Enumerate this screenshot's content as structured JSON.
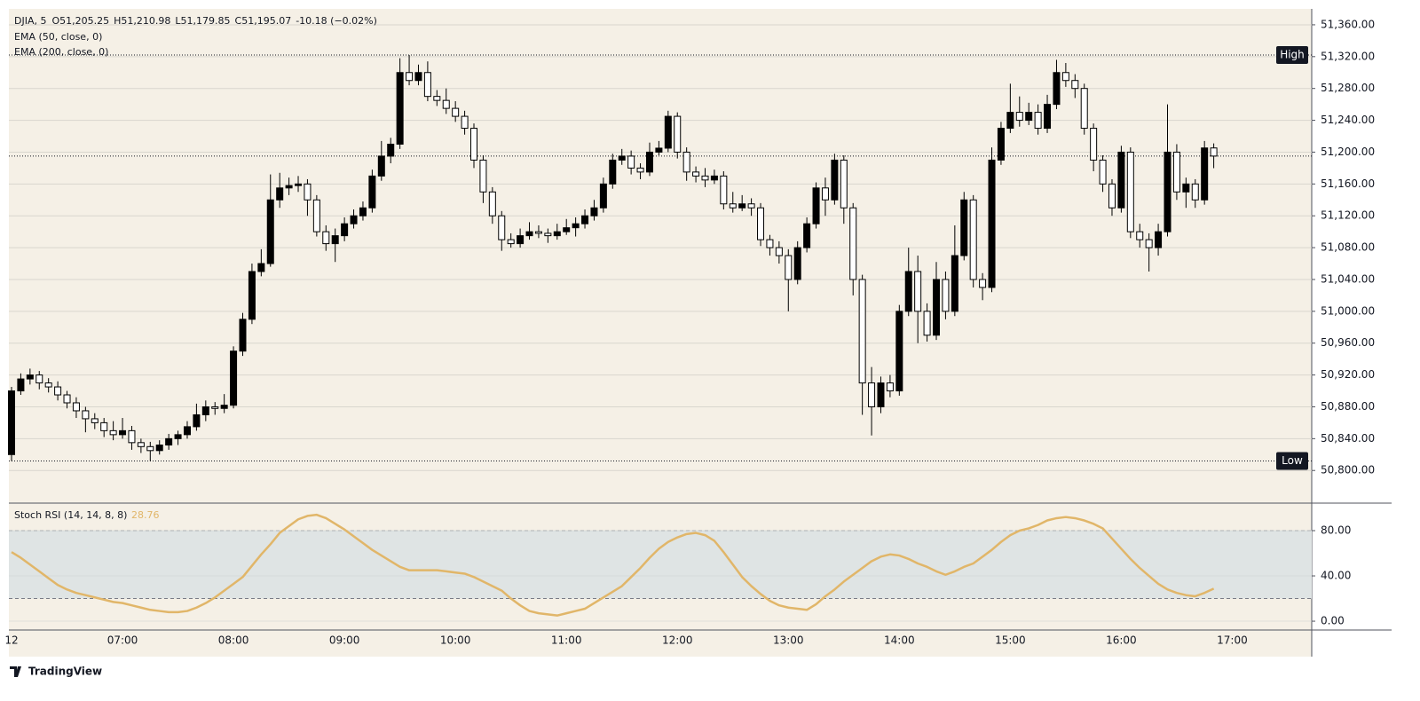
{
  "brand": "TradingView",
  "chart_data": [
    {
      "type": "candlestick",
      "legend": [
        "DJIA, 5",
        "O51,205.25",
        "H51,210.98",
        "L51,179.85",
        "C51,195.07",
        "-10.18 (−0.02%)"
      ],
      "indicators": [
        "EMA (50, close, 0)",
        "EMA (200, close, 0)"
      ],
      "up_color": "#000000",
      "down_color": "#ffffff",
      "ylim": [
        50759,
        51380
      ],
      "yticks": [
        {
          "value": 50800,
          "label": "50,800.00"
        },
        {
          "value": 50840,
          "label": "50,840.00"
        },
        {
          "value": 50880,
          "label": "50,880.00"
        },
        {
          "value": 50920,
          "label": "50,920.00"
        },
        {
          "value": 50960,
          "label": "50,960.00"
        },
        {
          "value": 51000,
          "label": "51,000.00"
        },
        {
          "value": 51040,
          "label": "51,040.00"
        },
        {
          "value": 51080,
          "label": "51,080.00"
        },
        {
          "value": 51120,
          "label": "51,120.00"
        },
        {
          "value": 51160,
          "label": "51,160.00"
        },
        {
          "value": 51200,
          "label": "51,200.00"
        },
        {
          "value": 51240,
          "label": "51,240.00"
        },
        {
          "value": 51280,
          "label": "51,280.00"
        },
        {
          "value": 51320,
          "label": "51,320.00"
        },
        {
          "value": 51360,
          "label": "51,360.00"
        }
      ],
      "grid": true,
      "high_level": {
        "label": "High",
        "value": 51322
      },
      "low_level": {
        "label": "Low",
        "value": 50812
      },
      "last_price": 51195.07,
      "xticks": [
        {
          "value": 0,
          "label": "12"
        },
        {
          "value": 12,
          "label": "07:00"
        },
        {
          "value": 24,
          "label": "08:00"
        },
        {
          "value": 36,
          "label": "09:00"
        },
        {
          "value": 48,
          "label": "10:00"
        },
        {
          "value": 60,
          "label": "11:00"
        },
        {
          "value": 72,
          "label": "12:00"
        },
        {
          "value": 84,
          "label": "13:00"
        },
        {
          "value": 96,
          "label": "14:00"
        },
        {
          "value": 108,
          "label": "15:00"
        },
        {
          "value": 120,
          "label": "16:00"
        },
        {
          "value": 132,
          "label": "17:00"
        }
      ],
      "candles": [
        [
          50820,
          50905,
          50812,
          50900
        ],
        [
          50900,
          50922,
          50895,
          50915
        ],
        [
          50915,
          50928,
          50908,
          50920
        ],
        [
          50920,
          50925,
          50902,
          50910
        ],
        [
          50910,
          50916,
          50898,
          50905
        ],
        [
          50905,
          50912,
          50888,
          50895
        ],
        [
          50895,
          50900,
          50878,
          50885
        ],
        [
          50885,
          50892,
          50866,
          50875
        ],
        [
          50875,
          50880,
          50848,
          50865
        ],
        [
          50865,
          50872,
          50852,
          50860
        ],
        [
          50860,
          50866,
          50842,
          50850
        ],
        [
          50850,
          50862,
          50838,
          50845
        ],
        [
          50845,
          50866,
          50840,
          50850
        ],
        [
          50850,
          50856,
          50826,
          50835
        ],
        [
          50835,
          50840,
          50822,
          50830
        ],
        [
          50830,
          50836,
          50812,
          50825
        ],
        [
          50825,
          50838,
          50820,
          50832
        ],
        [
          50832,
          50846,
          50826,
          50840
        ],
        [
          50840,
          50850,
          50832,
          50845
        ],
        [
          50845,
          50862,
          50840,
          50855
        ],
        [
          50855,
          50884,
          50850,
          50870
        ],
        [
          50870,
          50888,
          50862,
          50880
        ],
        [
          50880,
          50886,
          50870,
          50878
        ],
        [
          50878,
          50896,
          50872,
          50882
        ],
        [
          50882,
          50956,
          50878,
          50950
        ],
        [
          50950,
          50998,
          50944,
          50990
        ],
        [
          50990,
          51060,
          50984,
          51050
        ],
        [
          51050,
          51078,
          51044,
          51060
        ],
        [
          51060,
          51172,
          51056,
          51140
        ],
        [
          51140,
          51174,
          51130,
          51155
        ],
        [
          51155,
          51168,
          51146,
          51158
        ],
        [
          51158,
          51170,
          51150,
          51160
        ],
        [
          51160,
          51166,
          51120,
          51140
        ],
        [
          51140,
          51146,
          51094,
          51100
        ],
        [
          51100,
          51108,
          51076,
          51085
        ],
        [
          51085,
          51104,
          51062,
          51095
        ],
        [
          51095,
          51118,
          51088,
          51110
        ],
        [
          51110,
          51128,
          51104,
          51120
        ],
        [
          51120,
          51138,
          51114,
          51130
        ],
        [
          51130,
          51178,
          51124,
          51170
        ],
        [
          51170,
          51214,
          51164,
          51195
        ],
        [
          51195,
          51218,
          51186,
          51210
        ],
        [
          51210,
          51318,
          51204,
          51300
        ],
        [
          51300,
          51322,
          51284,
          51290
        ],
        [
          51290,
          51310,
          51284,
          51300
        ],
        [
          51300,
          51314,
          51264,
          51270
        ],
        [
          51270,
          51278,
          51258,
          51265
        ],
        [
          51265,
          51280,
          51248,
          51255
        ],
        [
          51255,
          51264,
          51238,
          51245
        ],
        [
          51245,
          51252,
          51222,
          51230
        ],
        [
          51230,
          51236,
          51180,
          51190
        ],
        [
          51190,
          51196,
          51136,
          51150
        ],
        [
          51150,
          51156,
          51110,
          51120
        ],
        [
          51120,
          51126,
          51076,
          51090
        ],
        [
          51090,
          51098,
          51080,
          51085
        ],
        [
          51085,
          51104,
          51080,
          51095
        ],
        [
          51095,
          51112,
          51090,
          51100
        ],
        [
          51100,
          51108,
          51092,
          51098
        ],
        [
          51098,
          51104,
          51086,
          51095
        ],
        [
          51095,
          51110,
          51090,
          51100
        ],
        [
          51100,
          51116,
          51096,
          51105
        ],
        [
          51105,
          51118,
          51094,
          51110
        ],
        [
          51110,
          51128,
          51104,
          51120
        ],
        [
          51120,
          51140,
          51114,
          51130
        ],
        [
          51130,
          51168,
          51124,
          51160
        ],
        [
          51160,
          51198,
          51154,
          51190
        ],
        [
          51190,
          51204,
          51184,
          51195
        ],
        [
          51195,
          51202,
          51172,
          51180
        ],
        [
          51180,
          51186,
          51166,
          51175
        ],
        [
          51175,
          51212,
          51170,
          51200
        ],
        [
          51200,
          51214,
          51196,
          51205
        ],
        [
          51205,
          51252,
          51200,
          51245
        ],
        [
          51245,
          51250,
          51192,
          51200
        ],
        [
          51200,
          51206,
          51164,
          51175
        ],
        [
          51175,
          51182,
          51162,
          51170
        ],
        [
          51170,
          51180,
          51156,
          51165
        ],
        [
          51165,
          51178,
          51160,
          51170
        ],
        [
          51170,
          51176,
          51128,
          51135
        ],
        [
          51135,
          51150,
          51124,
          51130
        ],
        [
          51130,
          51146,
          51126,
          51135
        ],
        [
          51135,
          51142,
          51120,
          51130
        ],
        [
          51130,
          51136,
          51082,
          51090
        ],
        [
          51090,
          51096,
          51070,
          51080
        ],
        [
          51080,
          51088,
          51060,
          51070
        ],
        [
          51070,
          51078,
          51000,
          51040
        ],
        [
          51040,
          51088,
          51034,
          51080
        ],
        [
          51080,
          51118,
          51074,
          51110
        ],
        [
          51110,
          51162,
          51104,
          51155
        ],
        [
          51155,
          51168,
          51120,
          51140
        ],
        [
          51140,
          51198,
          51134,
          51190
        ],
        [
          51190,
          51196,
          51110,
          51130
        ],
        [
          51130,
          51136,
          51020,
          51040
        ],
        [
          51040,
          51046,
          50870,
          50910
        ],
        [
          50910,
          50930,
          50844,
          50880
        ],
        [
          50880,
          50918,
          50872,
          50910
        ],
        [
          50910,
          50920,
          50892,
          50900
        ],
        [
          50900,
          51008,
          50894,
          51000
        ],
        [
          51000,
          51080,
          50994,
          51050
        ],
        [
          51050,
          51070,
          50960,
          51000
        ],
        [
          51000,
          51010,
          50962,
          50970
        ],
        [
          50970,
          51062,
          50964,
          51040
        ],
        [
          51040,
          51050,
          50990,
          51000
        ],
        [
          51000,
          51108,
          50994,
          51070
        ],
        [
          51070,
          51150,
          51064,
          51140
        ],
        [
          51140,
          51146,
          51030,
          51040
        ],
        [
          51040,
          51048,
          51014,
          51030
        ],
        [
          51030,
          51206,
          51024,
          51190
        ],
        [
          51190,
          51238,
          51184,
          51230
        ],
        [
          51230,
          51286,
          51224,
          51250
        ],
        [
          51250,
          51270,
          51232,
          51240
        ],
        [
          51240,
          51262,
          51234,
          51250
        ],
        [
          51250,
          51260,
          51222,
          51230
        ],
        [
          51230,
          51272,
          51224,
          51260
        ],
        [
          51260,
          51316,
          51254,
          51300
        ],
        [
          51300,
          51312,
          51282,
          51290
        ],
        [
          51290,
          51298,
          51268,
          51280
        ],
        [
          51280,
          51286,
          51222,
          51230
        ],
        [
          51230,
          51236,
          51176,
          51190
        ],
        [
          51190,
          51196,
          51150,
          51160
        ],
        [
          51160,
          51166,
          51120,
          51130
        ],
        [
          51130,
          51208,
          51124,
          51200
        ],
        [
          51200,
          51206,
          51092,
          51100
        ],
        [
          51100,
          51110,
          51080,
          51090
        ],
        [
          51090,
          51098,
          51050,
          51080
        ],
        [
          51080,
          51110,
          51070,
          51100
        ],
        [
          51100,
          51260,
          51094,
          51200
        ],
        [
          51200,
          51210,
          51140,
          51150
        ],
        [
          51150,
          51168,
          51130,
          51160
        ],
        [
          51160,
          51166,
          51130,
          51140
        ],
        [
          51140,
          51214,
          51134,
          51205.25
        ],
        [
          51205.25,
          51210.98,
          51179.85,
          51195.07
        ]
      ]
    },
    {
      "type": "line",
      "title": "Stoch RSI (14, 14, 8, 8)",
      "ylim": [
        -7.8,
        104.3
      ],
      "yticks": [
        {
          "value": 0,
          "label": "0.00"
        },
        {
          "value": 40,
          "label": "40.00"
        },
        {
          "value": 80,
          "label": "80.00"
        }
      ],
      "bands": [
        20,
        80
      ],
      "band_color": "#dfe4e4",
      "series": [
        {
          "color": "#e1b669",
          "values": [
            61,
            56,
            50,
            44,
            38,
            32,
            28,
            25,
            23,
            21,
            19,
            17,
            16,
            14,
            12,
            10,
            9,
            8,
            8,
            9,
            12,
            16,
            21,
            27,
            33,
            39,
            49,
            59,
            68,
            78,
            84,
            90,
            93,
            94,
            91,
            86,
            81,
            75,
            69,
            63,
            58,
            53,
            48,
            45,
            45,
            45,
            45,
            44,
            43,
            42,
            39,
            35,
            31,
            27,
            20,
            14,
            9,
            7,
            6,
            5,
            7,
            9,
            11,
            16,
            21,
            26,
            31,
            39,
            47,
            56,
            64,
            70,
            74,
            77,
            78,
            76,
            71,
            61,
            50,
            39,
            31,
            24,
            18,
            14,
            12,
            11,
            10,
            15,
            22,
            28,
            35,
            41,
            47,
            53,
            57,
            59,
            58,
            55,
            51,
            48,
            44,
            41,
            44,
            48,
            51,
            57,
            63,
            70,
            76,
            80,
            82,
            85,
            89,
            91,
            92,
            91,
            89,
            86,
            82,
            73,
            64,
            55,
            47,
            40,
            33,
            28,
            25,
            23,
            22,
            25,
            28.76
          ]
        }
      ]
    }
  ]
}
